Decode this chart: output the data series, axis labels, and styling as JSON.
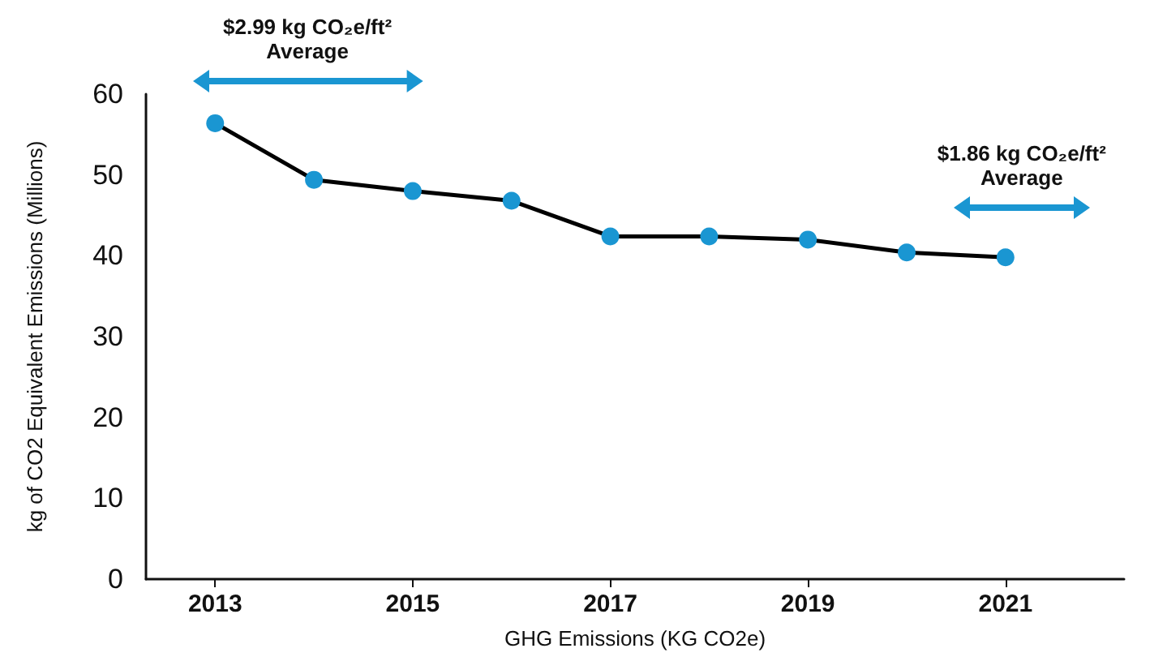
{
  "chart_data": {
    "type": "line",
    "xlabel": "GHG Emissions (KG CO2e)",
    "ylabel": "kg of CO2 Equivalent Emissions (Millions)",
    "x": [
      2013,
      2014,
      2015,
      2016,
      2017,
      2018,
      2019,
      2020,
      2021
    ],
    "series": [
      {
        "color": "#000000",
        "values": [
          56.4,
          49.4,
          48.0,
          46.8,
          42.4,
          42.4,
          42.0,
          40.4,
          39.8
        ]
      }
    ],
    "marker": "circle",
    "line_style": "solid",
    "xlim": [
      2012.3,
      2022.2
    ],
    "xticks": [
      2013,
      2015,
      2017,
      2019,
      2021
    ],
    "ylim": [
      0,
      60
    ],
    "yticks": [
      0,
      10,
      20,
      30,
      40,
      50,
      60
    ],
    "annotations": [
      "$2.99 kg CO₂e/ft² Average",
      "$1.86 kg CO₂e/ft² Average"
    ]
  }
}
